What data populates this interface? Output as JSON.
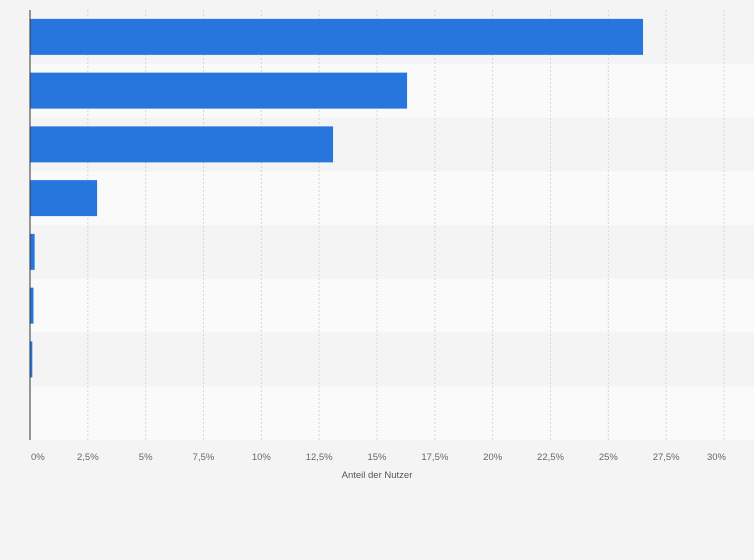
{
  "chart_data": {
    "type": "bar",
    "orientation": "horizontal",
    "title": "",
    "xlabel": "Anteil der Nutzer",
    "ylabel": "",
    "categories": [
      "",
      "",
      "",
      "",
      "",
      "",
      "",
      ""
    ],
    "values": [
      26.5,
      16.3,
      13.1,
      2.9,
      0.2,
      0.15,
      0.1,
      0
    ],
    "xlim": [
      0,
      30
    ],
    "x_ticks": [
      "0%",
      "2,5%",
      "5%",
      "7,5%",
      "10%",
      "12,5%",
      "15%",
      "17,5%",
      "20%",
      "22,5%",
      "25%",
      "27,5%",
      "30%"
    ],
    "grid": "vertical-dashed",
    "legend": "none",
    "bar_color": "#2776de",
    "band_colors": [
      "#f4f4f4",
      "#fafafa"
    ]
  }
}
